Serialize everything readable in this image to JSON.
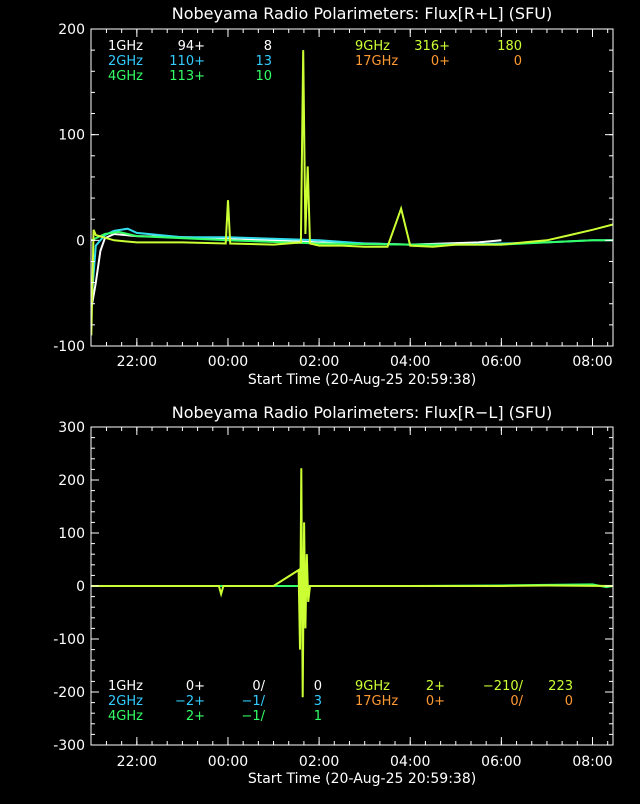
{
  "chart_data": [
    {
      "type": "line",
      "title": "Nobeyama Radio Polarimeters: Flux[R+L] (SFU)",
      "xlabel": "Start Time (20-Aug-25 20:59:38)",
      "ylabel": "",
      "xlim": [
        20.994,
        32.45
      ],
      "ylim": [
        -100,
        200
      ],
      "x_ticks": [
        {
          "value": 22,
          "label": "22:00"
        },
        {
          "value": 24,
          "label": "00:00"
        },
        {
          "value": 26,
          "label": "02:00"
        },
        {
          "value": 28,
          "label": "04:00"
        },
        {
          "value": 30,
          "label": "06:00"
        },
        {
          "value": 32,
          "label": "08:00"
        }
      ],
      "y_ticks": [
        {
          "value": 200,
          "label": "200"
        },
        {
          "value": 100,
          "label": "100"
        },
        {
          "value": 0,
          "label": "0"
        },
        {
          "value": -100,
          "label": "-100"
        }
      ],
      "legend_rows": [
        [
          {
            "label": "1GHz",
            "v1": "94+",
            "v2": "8",
            "color": "#ffffff"
          },
          {
            "label": "9GHz",
            "v1": "316+",
            "v2": "180",
            "color": "#ccff33"
          }
        ],
        [
          {
            "label": "2GHz",
            "v1": "110+",
            "v2": "13",
            "color": "#33ccff"
          },
          {
            "label": "17GHz",
            "v1": "0+",
            "v2": "0",
            "color": "#ff9933"
          }
        ],
        [
          {
            "label": "4GHz",
            "v1": "113+",
            "v2": "10",
            "color": "#33ff66"
          }
        ]
      ],
      "series": [
        {
          "name": "1GHz",
          "color": "#ffffff",
          "x": [
            21.0,
            21.1,
            21.2,
            21.3,
            21.5,
            22.0,
            24.0,
            26.0,
            28.0,
            29.5,
            30.0
          ],
          "y": [
            -65,
            -40,
            -10,
            2,
            6,
            4,
            2,
            -2,
            -4,
            -2,
            0
          ]
        },
        {
          "name": "2GHz",
          "color": "#33ddee",
          "x": [
            21.0,
            21.1,
            21.3,
            21.5,
            21.8,
            22.0,
            23.0,
            24.0,
            26.0,
            27.0,
            28.0,
            29.0,
            30.0,
            31.0,
            32.0,
            32.45
          ],
          "y": [
            -60,
            -5,
            5,
            9,
            11,
            7,
            3,
            3,
            0,
            -3,
            -4,
            -4,
            -3,
            -2,
            0,
            0
          ]
        },
        {
          "name": "4GHz",
          "color": "#33ff66",
          "x": [
            21.0,
            21.3,
            21.6,
            22.0,
            24.0,
            26.0,
            28.0,
            30.0,
            31.0,
            32.0,
            32.45
          ],
          "y": [
            0,
            6,
            8,
            4,
            0,
            -3,
            -4,
            -4,
            -2,
            0,
            0
          ]
        },
        {
          "name": "9GHz",
          "color": "#ccff33",
          "x": [
            21.0,
            21.05,
            21.1,
            21.5,
            22.0,
            23.0,
            23.95,
            24.0,
            24.05,
            25.0,
            25.6,
            25.65,
            25.7,
            25.75,
            25.8,
            26.0,
            26.5,
            27.0,
            27.5,
            27.8,
            28.0,
            28.5,
            29.0,
            30.0,
            30.5,
            31.0,
            31.5,
            32.0,
            32.45
          ],
          "y": [
            -90,
            10,
            5,
            0,
            -2,
            -2,
            -3,
            38,
            -3,
            -4,
            -2,
            180,
            6,
            70,
            -3,
            -5,
            -5,
            -6,
            -6,
            30,
            -5,
            -6,
            -4,
            -4,
            -2,
            0,
            5,
            10,
            15
          ]
        }
      ]
    },
    {
      "type": "line",
      "title": "Nobeyama Radio Polarimeters: Flux[R−L] (SFU)",
      "xlabel": "Start Time (20-Aug-25 20:59:38)",
      "ylabel": "",
      "xlim": [
        20.994,
        32.45
      ],
      "ylim": [
        -300,
        300
      ],
      "x_ticks": [
        {
          "value": 22,
          "label": "22:00"
        },
        {
          "value": 24,
          "label": "00:00"
        },
        {
          "value": 26,
          "label": "02:00"
        },
        {
          "value": 28,
          "label": "04:00"
        },
        {
          "value": 30,
          "label": "06:00"
        },
        {
          "value": 32,
          "label": "08:00"
        }
      ],
      "y_ticks": [
        {
          "value": 300,
          "label": "300"
        },
        {
          "value": 200,
          "label": "200"
        },
        {
          "value": 100,
          "label": "100"
        },
        {
          "value": 0,
          "label": "0"
        },
        {
          "value": -100,
          "label": "-100"
        },
        {
          "value": -200,
          "label": "-200"
        },
        {
          "value": -300,
          "label": "-300"
        }
      ],
      "legend_rows": [
        [
          {
            "label": "1GHz",
            "v1": "0+",
            "v2": "0/",
            "v3": "0",
            "color": "#ffffff"
          },
          {
            "label": "9GHz",
            "v1": "2+",
            "v2": "−210/",
            "v3": "223",
            "color": "#ccff33"
          }
        ],
        [
          {
            "label": "2GHz",
            "v1": "−2+",
            "v2": "−1/",
            "v3": "3",
            "color": "#33ccff"
          },
          {
            "label": "17GHz",
            "v1": "0+",
            "v2": "0/",
            "v3": "0",
            "color": "#ff9933"
          }
        ],
        [
          {
            "label": "4GHz",
            "v1": "2+",
            "v2": "−1/",
            "v3": "1",
            "color": "#33ff66"
          }
        ]
      ],
      "series": [
        {
          "name": "4GHz",
          "color": "#33ff66",
          "x": [
            21.0,
            24.0,
            28.0,
            30.0,
            31.0,
            32.0,
            32.3,
            32.45
          ],
          "y": [
            0,
            0,
            0,
            1,
            2,
            3,
            -2,
            0
          ]
        },
        {
          "name": "9GHz",
          "color": "#ccff33",
          "x": [
            21.0,
            22.0,
            23.8,
            23.85,
            23.9,
            25.0,
            25.55,
            25.58,
            25.61,
            25.64,
            25.67,
            25.7,
            25.73,
            25.76,
            25.8,
            26.0,
            27.0,
            28.0,
            30.0,
            31.0,
            32.45
          ],
          "y": [
            0,
            0,
            0,
            -15,
            0,
            0,
            30,
            -120,
            222,
            -210,
            120,
            -80,
            60,
            -30,
            0,
            0,
            0,
            0,
            0,
            1,
            0
          ]
        }
      ]
    }
  ]
}
